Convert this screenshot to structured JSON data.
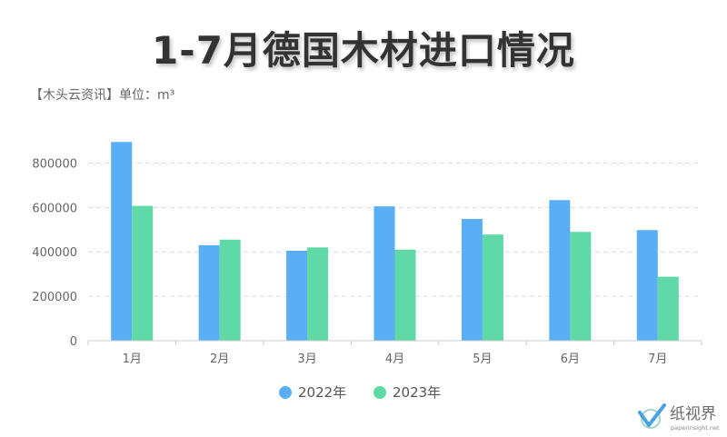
{
  "title": "1-7月德国木材进口情况",
  "subtitle": "【木头云资讯】单位：m³",
  "colors": {
    "series_2022": "#5aaef5",
    "series_2023": "#5fd9a6"
  },
  "watermark": {
    "logo": "check-leaf-logo",
    "name_cn": "纸视界",
    "name_en": "paperinsight.net"
  },
  "chart_data": {
    "type": "bar",
    "categories": [
      "1月",
      "2月",
      "3月",
      "4月",
      "5月",
      "6月",
      "7月"
    ],
    "series": [
      {
        "name": "2022年",
        "values": [
          895000,
          430000,
          405000,
          605000,
          548000,
          633000,
          498000
        ]
      },
      {
        "name": "2023年",
        "values": [
          607000,
          455000,
          420000,
          410000,
          478000,
          490000,
          288000
        ]
      }
    ],
    "ylim": [
      0,
      900000
    ],
    "yticks": [
      0,
      200000,
      400000,
      600000,
      800000
    ],
    "grid": true,
    "legend": "bottom-center"
  }
}
